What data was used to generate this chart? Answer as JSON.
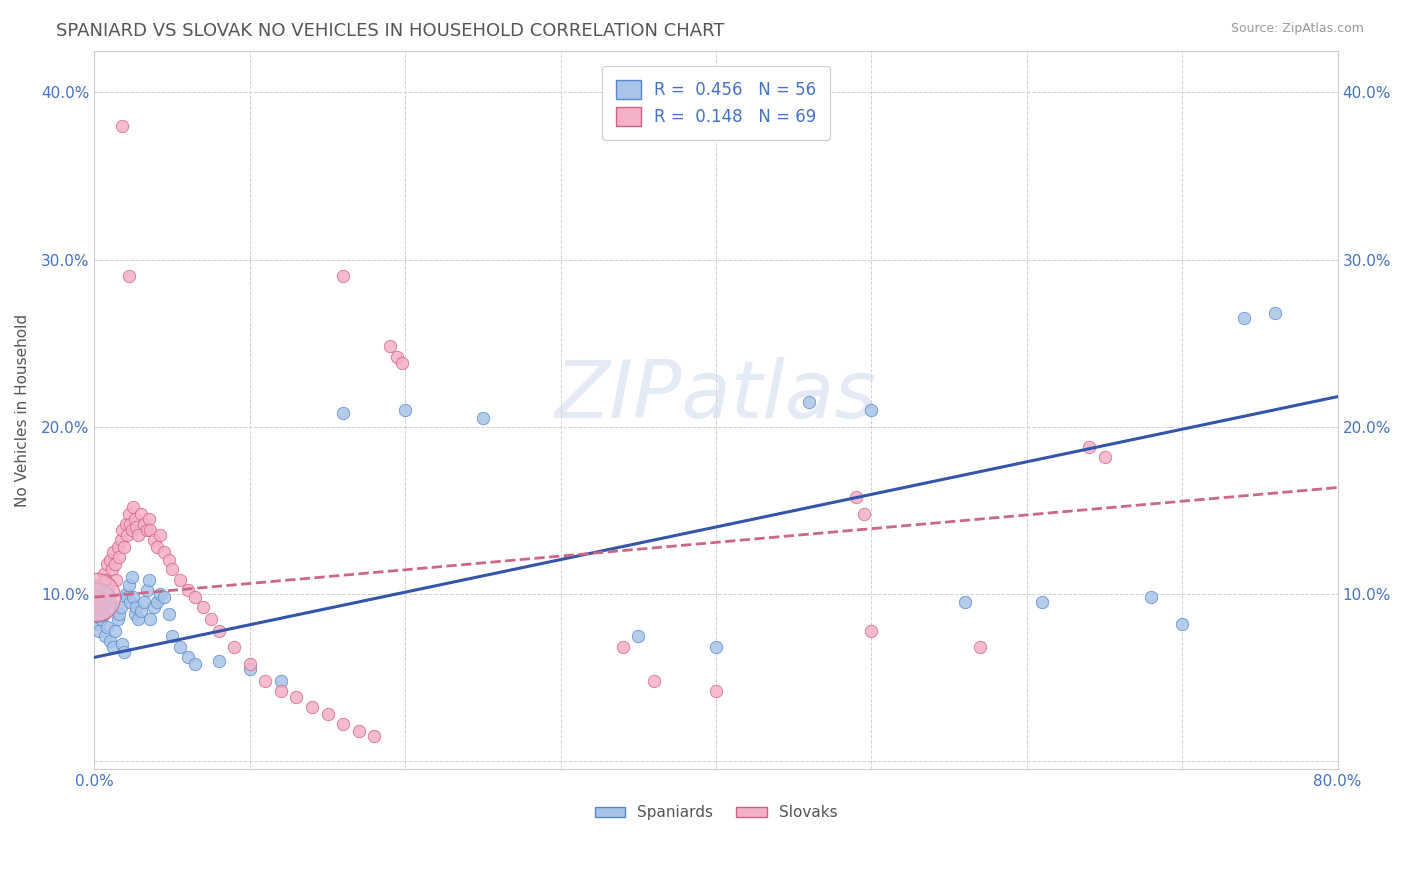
{
  "title": "SPANIARD VS SLOVAK NO VEHICLES IN HOUSEHOLD CORRELATION CHART",
  "source": "Source: ZipAtlas.com",
  "ylabel": "No Vehicles in Household",
  "xlim": [
    0.0,
    0.8
  ],
  "ylim": [
    -0.005,
    0.425
  ],
  "spaniard_color": "#a8c4e8",
  "spaniard_edge_color": "#5588cc",
  "slovak_color": "#f4b0c8",
  "slovak_edge_color": "#d46080",
  "spaniard_line_color": "#3355aa",
  "slovak_line_color": "#cc6688",
  "background_color": "#ffffff",
  "grid_color": "#cccccc",
  "title_color": "#555555",
  "watermark": "ZIPatlas",
  "spaniard_points": [
    [
      0.001,
      0.09
    ],
    [
      0.002,
      0.082
    ],
    [
      0.003,
      0.078
    ],
    [
      0.004,
      0.085
    ],
    [
      0.005,
      0.092
    ],
    [
      0.006,
      0.088
    ],
    [
      0.007,
      0.075
    ],
    [
      0.008,
      0.08
    ],
    [
      0.009,
      0.095
    ],
    [
      0.01,
      0.072
    ],
    [
      0.012,
      0.068
    ],
    [
      0.013,
      0.078
    ],
    [
      0.015,
      0.085
    ],
    [
      0.016,
      0.088
    ],
    [
      0.017,
      0.092
    ],
    [
      0.018,
      0.07
    ],
    [
      0.019,
      0.065
    ],
    [
      0.02,
      0.1
    ],
    [
      0.021,
      0.098
    ],
    [
      0.022,
      0.105
    ],
    [
      0.023,
      0.095
    ],
    [
      0.024,
      0.11
    ],
    [
      0.025,
      0.098
    ],
    [
      0.026,
      0.088
    ],
    [
      0.027,
      0.092
    ],
    [
      0.028,
      0.085
    ],
    [
      0.03,
      0.09
    ],
    [
      0.032,
      0.095
    ],
    [
      0.034,
      0.102
    ],
    [
      0.035,
      0.108
    ],
    [
      0.036,
      0.085
    ],
    [
      0.038,
      0.092
    ],
    [
      0.04,
      0.095
    ],
    [
      0.042,
      0.1
    ],
    [
      0.045,
      0.098
    ],
    [
      0.048,
      0.088
    ],
    [
      0.05,
      0.075
    ],
    [
      0.055,
      0.068
    ],
    [
      0.06,
      0.062
    ],
    [
      0.065,
      0.058
    ],
    [
      0.08,
      0.06
    ],
    [
      0.1,
      0.055
    ],
    [
      0.12,
      0.048
    ],
    [
      0.16,
      0.208
    ],
    [
      0.2,
      0.21
    ],
    [
      0.25,
      0.205
    ],
    [
      0.35,
      0.075
    ],
    [
      0.4,
      0.068
    ],
    [
      0.46,
      0.215
    ],
    [
      0.5,
      0.21
    ],
    [
      0.56,
      0.095
    ],
    [
      0.61,
      0.095
    ],
    [
      0.68,
      0.098
    ],
    [
      0.7,
      0.082
    ],
    [
      0.74,
      0.265
    ],
    [
      0.76,
      0.268
    ]
  ],
  "slovak_points": [
    [
      0.001,
      0.098
    ],
    [
      0.002,
      0.092
    ],
    [
      0.003,
      0.105
    ],
    [
      0.004,
      0.095
    ],
    [
      0.005,
      0.088
    ],
    [
      0.006,
      0.112
    ],
    [
      0.007,
      0.108
    ],
    [
      0.008,
      0.118
    ],
    [
      0.009,
      0.102
    ],
    [
      0.01,
      0.12
    ],
    [
      0.011,
      0.115
    ],
    [
      0.012,
      0.125
    ],
    [
      0.013,
      0.118
    ],
    [
      0.014,
      0.108
    ],
    [
      0.015,
      0.128
    ],
    [
      0.016,
      0.122
    ],
    [
      0.017,
      0.132
    ],
    [
      0.018,
      0.138
    ],
    [
      0.019,
      0.128
    ],
    [
      0.02,
      0.142
    ],
    [
      0.021,
      0.135
    ],
    [
      0.022,
      0.148
    ],
    [
      0.023,
      0.142
    ],
    [
      0.024,
      0.138
    ],
    [
      0.025,
      0.152
    ],
    [
      0.026,
      0.145
    ],
    [
      0.027,
      0.14
    ],
    [
      0.028,
      0.135
    ],
    [
      0.03,
      0.148
    ],
    [
      0.032,
      0.142
    ],
    [
      0.034,
      0.138
    ],
    [
      0.035,
      0.145
    ],
    [
      0.036,
      0.138
    ],
    [
      0.038,
      0.132
    ],
    [
      0.04,
      0.128
    ],
    [
      0.042,
      0.135
    ],
    [
      0.045,
      0.125
    ],
    [
      0.048,
      0.12
    ],
    [
      0.05,
      0.115
    ],
    [
      0.055,
      0.108
    ],
    [
      0.06,
      0.102
    ],
    [
      0.065,
      0.098
    ],
    [
      0.07,
      0.092
    ],
    [
      0.075,
      0.085
    ],
    [
      0.08,
      0.078
    ],
    [
      0.09,
      0.068
    ],
    [
      0.1,
      0.058
    ],
    [
      0.11,
      0.048
    ],
    [
      0.12,
      0.042
    ],
    [
      0.13,
      0.038
    ],
    [
      0.14,
      0.032
    ],
    [
      0.15,
      0.028
    ],
    [
      0.16,
      0.022
    ],
    [
      0.17,
      0.018
    ],
    [
      0.18,
      0.015
    ],
    [
      0.018,
      0.38
    ],
    [
      0.022,
      0.29
    ],
    [
      0.16,
      0.29
    ],
    [
      0.19,
      0.248
    ],
    [
      0.195,
      0.242
    ],
    [
      0.198,
      0.238
    ],
    [
      0.34,
      0.068
    ],
    [
      0.36,
      0.048
    ],
    [
      0.4,
      0.042
    ],
    [
      0.49,
      0.158
    ],
    [
      0.495,
      0.148
    ],
    [
      0.5,
      0.078
    ],
    [
      0.57,
      0.068
    ],
    [
      0.64,
      0.188
    ],
    [
      0.65,
      0.182
    ]
  ],
  "spaniard_large": [
    [
      0.001,
      0.095
    ]
  ],
  "spaniard_large_size": 800,
  "slovak_large": [
    [
      0.001,
      0.098
    ]
  ],
  "slovak_large_size": 1200,
  "spaniard_intercept": 0.062,
  "spaniard_slope": 0.195,
  "slovak_intercept": 0.098,
  "slovak_slope": 0.082
}
